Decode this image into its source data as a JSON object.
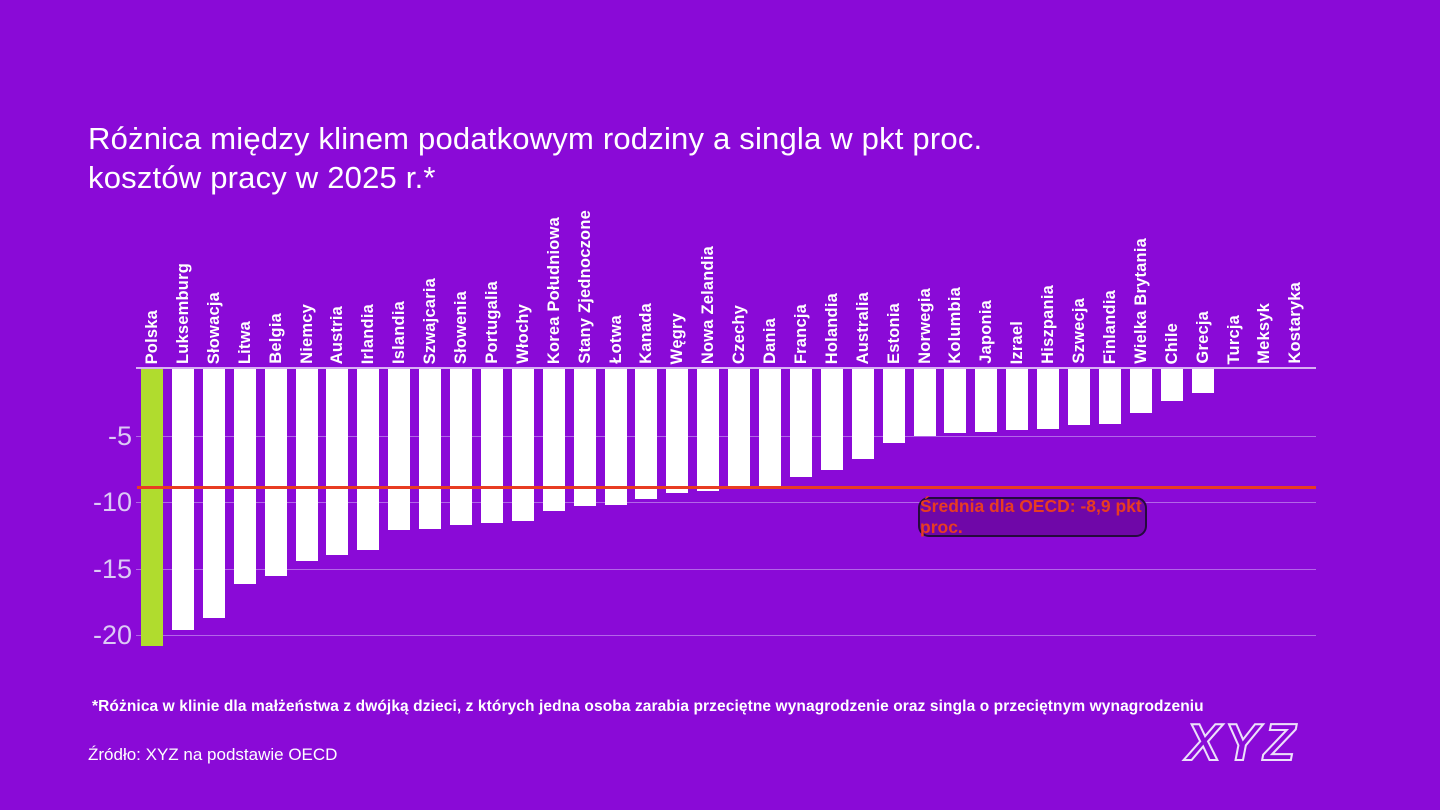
{
  "title": {
    "line1": "Różnica między klinem podatkowym rodziny a singla w pkt proc.",
    "line2": "kosztów pracy w 2025 r.*"
  },
  "chart_data": {
    "type": "bar",
    "orientation": "vertical",
    "title": "Różnica między klinem podatkowym rodziny a singla w pkt proc. kosztów pracy w 2025 r.*",
    "categories": [
      "Polska",
      "Luksemburg",
      "Słowacja",
      "Litwa",
      "Belgia",
      "Niemcy",
      "Austria",
      "Irlandia",
      "Islandia",
      "Szwajcaria",
      "Słowenia",
      "Portugalia",
      "Włochy",
      "Korea Południowa",
      "Stany Zjednoczone",
      "Łotwa",
      "Kanada",
      "Węgry",
      "Nowa Zelandia",
      "Czechy",
      "Dania",
      "Francja",
      "Holandia",
      "Australia",
      "Estonia",
      "Norwegia",
      "Kolumbia",
      "Japonia",
      "Izrael",
      "Hiszpania",
      "Szwecja",
      "Finlandia",
      "Wielka Brytania",
      "Chile",
      "Grecja",
      "Turcja",
      "Meksyk",
      "Kostaryka"
    ],
    "values": [
      -20.8,
      -19.6,
      -18.7,
      -16.2,
      -15.6,
      -14.4,
      -14.0,
      -13.6,
      -12.1,
      -12.0,
      -11.7,
      -11.6,
      -11.4,
      -10.7,
      -10.3,
      -10.2,
      -9.8,
      -9.3,
      -9.2,
      -9.0,
      -8.9,
      -8.1,
      -7.6,
      -6.8,
      -5.6,
      -5.0,
      -4.8,
      -4.7,
      -4.6,
      -4.5,
      -4.2,
      -4.1,
      -3.3,
      -2.4,
      -1.8,
      0,
      0,
      0
    ],
    "highlight": {
      "category": "Polska",
      "color": "#b0dc2e"
    },
    "bar_color": "#ffffff",
    "average_line": {
      "value": -8.9,
      "label": "Średnia dla OECD: -8,9 pkt proc.",
      "color": "#e83c22"
    },
    "yticks": [
      {
        "value": -5,
        "label": "-5"
      },
      {
        "value": -10,
        "label": "-10"
      },
      {
        "value": -15,
        "label": "-15"
      },
      {
        "value": -20,
        "label": "-20"
      }
    ],
    "ylim": [
      -21.5,
      0
    ],
    "grid": true,
    "legend_position": "none"
  },
  "footnote": "*Różnica w klinie dla małżeństwa z dwójką dzieci, z których jedna osoba zarabia przeciętne wynagrodzenie oraz singla o przeciętnym wynagrodzeniu",
  "source": "Źródło: XYZ na podstawie OECD",
  "logo": {
    "text": "XYZ"
  },
  "colors": {
    "background": "#8a0ad7",
    "bar": "#ffffff",
    "highlight": "#b0dc2e",
    "gridline": "#d6b1f5",
    "tick_label": "#dcc9f5",
    "average_line": "#e83c22",
    "annotation_bg": "#6f07a8",
    "annotation_border": "#250a3e",
    "annotation_text": "#e83c22"
  }
}
